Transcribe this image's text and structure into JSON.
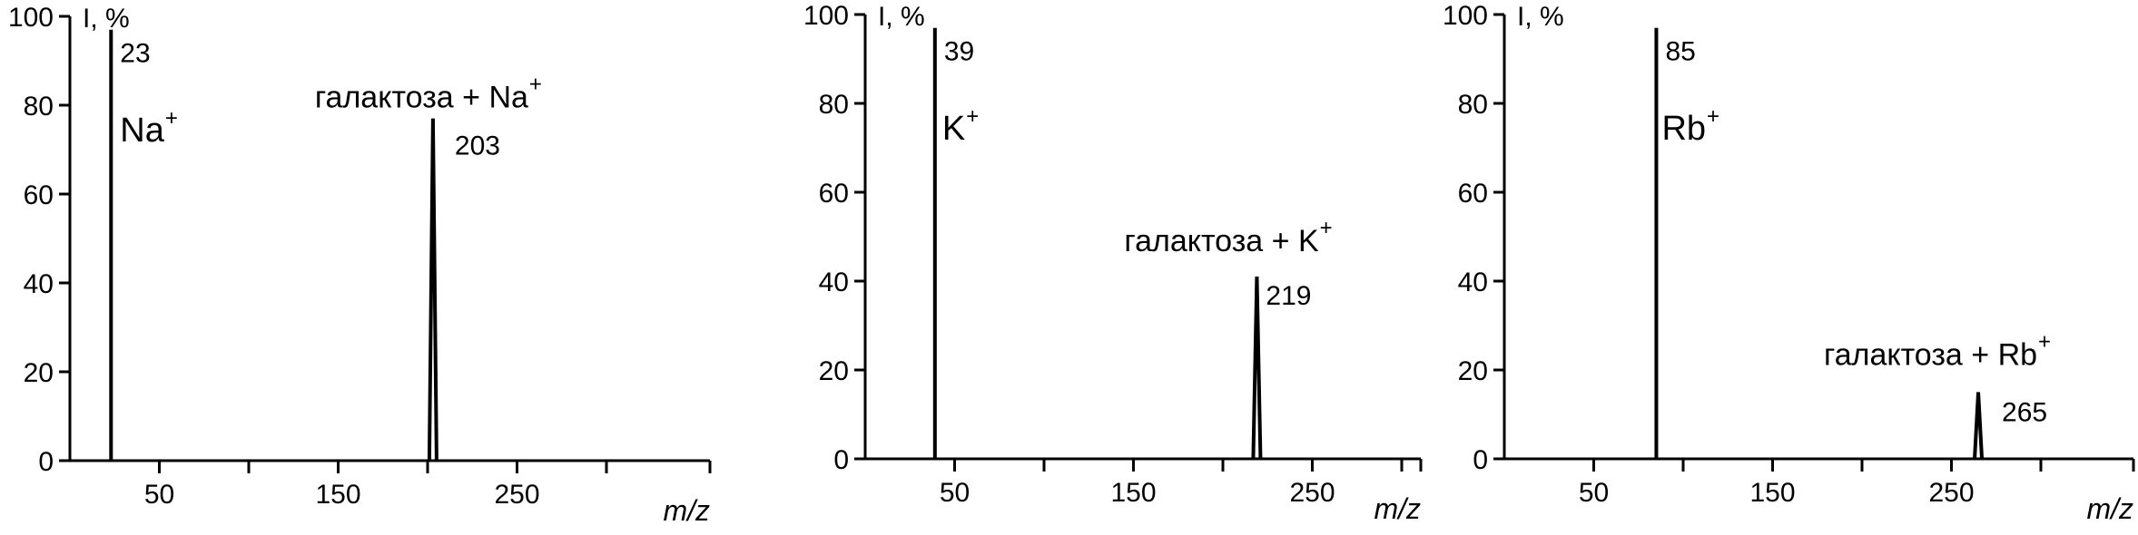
{
  "chart_data": [
    {
      "type": "line",
      "ylabel": "I, %",
      "xlabel": "m/z",
      "ylim": [
        0,
        100
      ],
      "yticks": [
        0,
        20,
        40,
        60,
        80,
        100
      ],
      "xlim": [
        0,
        360
      ],
      "xticks_labeled": [
        50,
        150,
        250
      ],
      "xticks_minor": [
        100,
        200,
        300
      ],
      "peaks": [
        {
          "x": 23,
          "y": 97,
          "label": "23",
          "ion_base": "Na",
          "ion_sup": "+"
        },
        {
          "x": 203,
          "y": 77,
          "label": "203",
          "annotation_base": "галактоза + Na",
          "annotation_sup": "+"
        }
      ]
    },
    {
      "type": "line",
      "ylabel": "I, %",
      "xlabel": "m/z",
      "ylim": [
        0,
        100
      ],
      "yticks": [
        0,
        20,
        40,
        60,
        80,
        100
      ],
      "xlim": [
        0,
        360
      ],
      "xticks_labeled": [
        50,
        150,
        250
      ],
      "xticks_minor": [
        100,
        200,
        300
      ],
      "peaks": [
        {
          "x": 39,
          "y": 97,
          "label": "39",
          "ion_base": "K",
          "ion_sup": "+"
        },
        {
          "x": 219,
          "y": 41,
          "label": "219",
          "annotation_base": "галактоза + K",
          "annotation_sup": "+"
        }
      ]
    },
    {
      "type": "line",
      "ylabel": "I, %",
      "xlabel": "m/z",
      "ylim": [
        0,
        100
      ],
      "yticks": [
        0,
        20,
        40,
        60,
        80,
        100
      ],
      "xlim": [
        0,
        360
      ],
      "xticks_labeled": [
        50,
        150,
        250
      ],
      "xticks_minor": [
        100,
        200,
        300
      ],
      "peaks": [
        {
          "x": 85,
          "y": 97,
          "label": "85",
          "ion_base": "Rb",
          "ion_sup": "+"
        },
        {
          "x": 265,
          "y": 15,
          "label": "265",
          "annotation_base": "галактоза + Rb",
          "annotation_sup": "+"
        }
      ]
    }
  ]
}
